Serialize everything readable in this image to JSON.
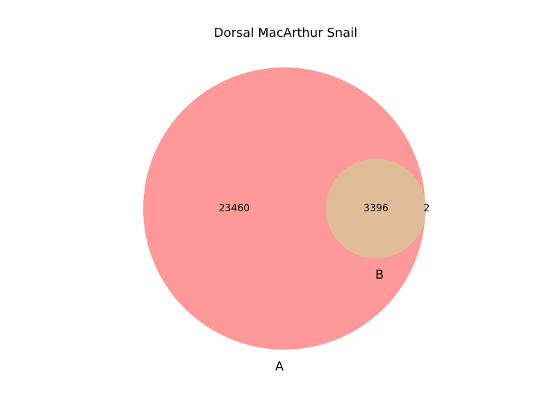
{
  "title": "Dorsal MacArthur Snail",
  "sets": [
    {
      "name": "A",
      "color": "#ff9999"
    },
    {
      "name": "B",
      "color": "#e0bc98"
    }
  ],
  "regions": {
    "a_only": "23460",
    "a_and_b": "3396",
    "b_only": "2"
  }
}
